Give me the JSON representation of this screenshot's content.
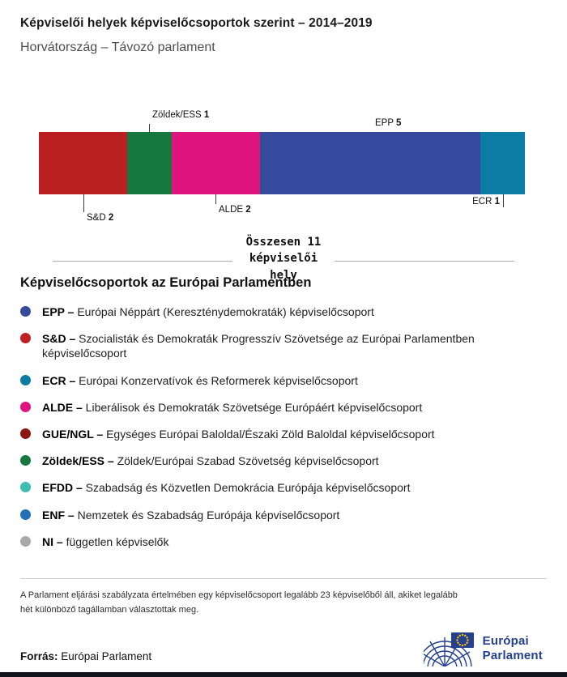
{
  "header": {
    "title": "Képviselői helyek képviselőcsoportok szerint – 2014–2019",
    "subtitle": "Horvátország – Távozó parlament"
  },
  "chart_data": {
    "type": "bar",
    "variant": "horizontal-stacked",
    "unit": "seats",
    "total_seats": 11,
    "total_label": "Összesen 11\nképviselői\nhely",
    "segments": [
      {
        "name": "S&D",
        "seats": 2,
        "color": "#b9201f",
        "label_pos": "below",
        "line_len": 22,
        "align": "left"
      },
      {
        "name": "Zöldek/ESS",
        "seats": 1,
        "color": "#15793f",
        "label_pos": "above",
        "line_len": 10,
        "align": "left"
      },
      {
        "name": "ALDE",
        "seats": 2,
        "color": "#e0147e",
        "label_pos": "below",
        "line_len": 12,
        "align": "left"
      },
      {
        "name": "EPP",
        "seats": 5,
        "color": "#344a9d",
        "label_pos": "above",
        "line_len": 0,
        "align": "left"
      },
      {
        "name": "ECR",
        "seats": 1,
        "color": "#0b7ca3",
        "label_pos": "below",
        "line_len": 16,
        "align": "right"
      }
    ]
  },
  "legend": {
    "title": "Képviselőcsoportok az Európai Parlamentben",
    "items": [
      {
        "abbr": "EPP –",
        "desc": "Európai Néppárt (Kereszténydemokraták) képviselőcsoport",
        "color": "#344a9d"
      },
      {
        "abbr": "S&D –",
        "desc": "Szocialisták és Demokraták Progresszív Szövetsége az Európai Parlamentben képviselőcsoport",
        "color": "#c01f24"
      },
      {
        "abbr": "ECR –",
        "desc": "Európai Konzervatívok és Reformerek képviselőcsoport",
        "color": "#0b7ca3"
      },
      {
        "abbr": "ALDE –",
        "desc": "Liberálisok és Demokraták Szövetsége Európáért képviselőcsoport",
        "color": "#e0147e"
      },
      {
        "abbr": "GUE/NGL –",
        "desc": "Egységes Európai Baloldal/Északi Zöld Baloldal képviselőcsoport",
        "color": "#8c1711"
      },
      {
        "abbr": "Zöldek/ESS –",
        "desc": "Zöldek/Európai Szabad Szövetség képviselőcsoport",
        "color": "#15793f"
      },
      {
        "abbr": "EFDD –",
        "desc": "Szabadság és Közvetlen Demokrácia Európája képviselőcsoport",
        "color": "#3fbdb2"
      },
      {
        "abbr": "ENF –",
        "desc": "Nemzetek és Szabadság Európája képviselőcsoport",
        "color": "#2170b8"
      },
      {
        "abbr": "NI –",
        "desc": "független képviselők",
        "color": "#a9a9a9"
      }
    ]
  },
  "footer": {
    "note": "A Parlament eljárási szabályzata értelmében egy képviselőcsoport legalább 23 képviselőből áll, akiket legalább hét különböző tagállamban választottak meg.",
    "source_label": "Forrás:",
    "source_value": "Európai Parlament",
    "logo_line1": "Európai",
    "logo_line2": "Parlament"
  }
}
